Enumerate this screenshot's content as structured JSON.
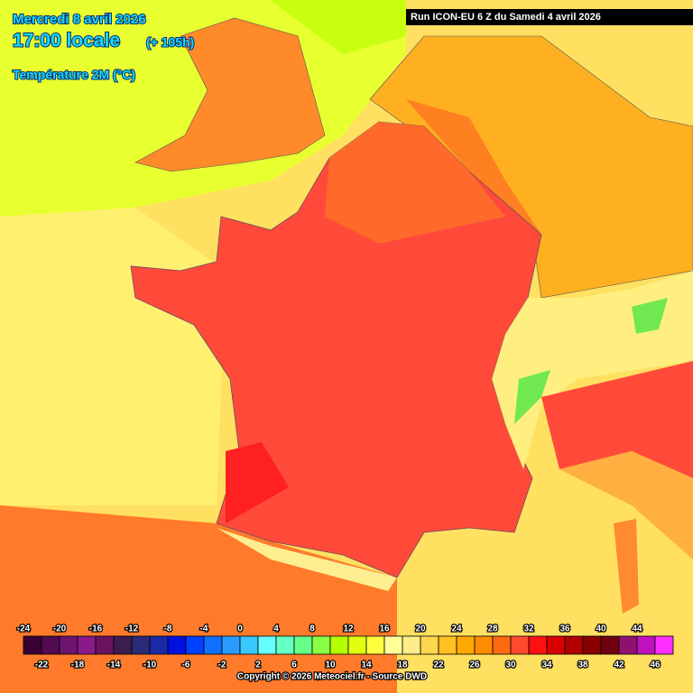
{
  "header": {
    "date": "Mercredi 8 avril 2026",
    "time": "17:00 locale",
    "lead": "(+ 105h)",
    "field": "Température 2M (°C)",
    "run": "Run ICON-EU 6 Z du Samedi 4 avril 2026"
  },
  "legend": {
    "ticks": [
      -24,
      -22,
      -20,
      -18,
      -16,
      -14,
      -12,
      -10,
      -8,
      -6,
      -4,
      -2,
      0,
      2,
      4,
      6,
      8,
      10,
      12,
      14,
      16,
      18,
      20,
      22,
      24,
      26,
      28,
      30,
      32,
      34,
      36,
      38,
      40,
      42,
      44,
      46
    ],
    "colors": [
      "#3a0035",
      "#520a50",
      "#6e1470",
      "#8a1a8a",
      "#6a1460",
      "#3a1e50",
      "#2a2a78",
      "#1a2aa8",
      "#0010e0",
      "#0040ff",
      "#1070ff",
      "#2a9cff",
      "#38c8ff",
      "#66ffff",
      "#66ffc4",
      "#66ff88",
      "#88ff44",
      "#b4ff00",
      "#e0ff10",
      "#ffff40",
      "#ffff9a",
      "#ffec8a",
      "#ffd650",
      "#ffc020",
      "#ffa800",
      "#ff8c00",
      "#ff6a10",
      "#ff4a30",
      "#ff1010",
      "#d80000",
      "#b00000",
      "#8a0000",
      "#700010",
      "#901070",
      "#c010c0",
      "#ff30ff"
    ]
  },
  "footer": {
    "copyright": "Copyright © 2026 Meteociel.fr - Source DWD"
  }
}
